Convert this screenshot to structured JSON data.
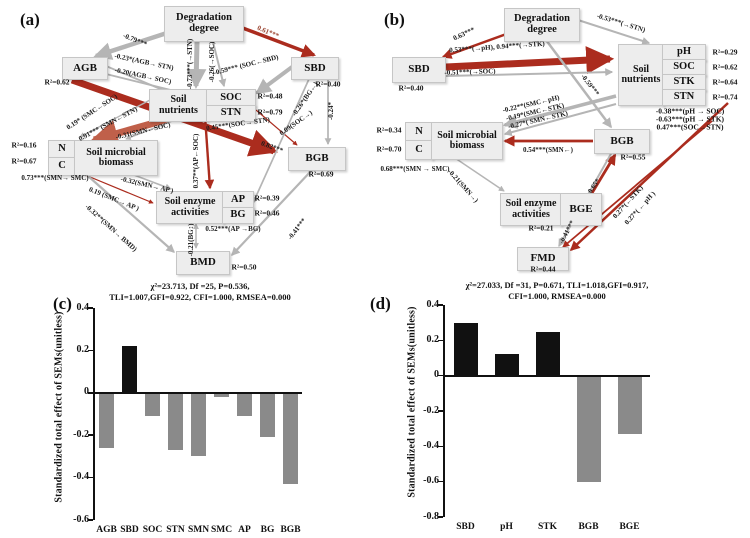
{
  "panel_a": {
    "tag": "(a)",
    "nodes": {
      "deg": "Degradation degree",
      "agb": "AGB",
      "sbd": "SBD",
      "soiln": "Soil nutrients",
      "soc": "SOC",
      "stn": "STN",
      "n": "N",
      "c": "C",
      "smb": "Soil microbial biomass",
      "sea": "Soil enzyme activities",
      "ap": "AP",
      "bg": "BG",
      "bgb": "BGB",
      "bmd": "BMD"
    },
    "edge_labels": {
      "e1": "-0.79***",
      "e2": "0.61***",
      "e3": "-0.23*(AGB→ STN)",
      "e4": "-0.20(AGB→ SOC)",
      "e5": "-0.73***(→STN)",
      "e6": "-0.26(→SOC)",
      "e7": "-0.59*** (SOC←SBD)",
      "e8": "0.45***(SOC→ STN)",
      "e9": "0.19* (SMC←SOC)",
      "e10": "0.91*** (SMN←STN)",
      "e11": "-0.31(SMN←SOC)",
      "e12": "0.73***(SMN→ SMC)",
      "e13": "-0.32(SMN→ AP )",
      "e14": "0.19 (SMC→ AP )",
      "e15": "-0.32**(SMN→ BMD)",
      "e16": "0.37**(AP←SOC)",
      "e17": "0.09(SOC→)",
      "e18": "-0.26*(BG←)",
      "e19": "-0.24*",
      "e20": "0.82***",
      "e21": "0.52***(AP →BG)",
      "e22": "-0.21(BG↕)",
      "e23": "-0.41***"
    },
    "annotations": {
      "r_agb": "R²=0.62",
      "r_sbd": "R²=0.40",
      "r_soc": "R²=0.48",
      "r_stn": "R²=0.79",
      "r_n": "R²=0.16",
      "r_c": "R²=0.67",
      "r_bgb": "R²=0.69",
      "r_ap": "R²=0.39",
      "r_bg": "R²=0.46",
      "r_bmd": "R²=0.50"
    },
    "stats": [
      "χ²=23.713, Df =25, P=0.536,",
      "TLI=1.007,GFI=0.922, CFI=1.000, RMSEA=0.000"
    ]
  },
  "panel_b": {
    "tag": "(b)",
    "nodes": {
      "deg": "Degradation degree",
      "sbd": "SBD",
      "soiln": "Soil nutrients",
      "ph": "pH",
      "soc": "SOC",
      "stk": "STK",
      "stn": "STN",
      "n": "N",
      "c": "C",
      "smb": "Soil microbial biomass",
      "bgb": "BGB",
      "sea": "Soil enzyme activities",
      "bge": "BGE",
      "fmd": "FMD"
    },
    "edge_labels": {
      "f1": "0.63***",
      "f2": "-0.53***(→STN)",
      "f3": "0.53***(→pH), 0.94***(→STK)",
      "f4": "-0.51***(→SOC)",
      "f5": "-0.59***",
      "f6": "-0.22**(SMC←pH)",
      "f7": "-0.19*(SMC←STK)",
      "f8": "-0.27*( SMN←STK)",
      "f9": "0.54***(SMN←)",
      "f10": "0.68***(SMN → SMC)",
      "f11": "-0.21(SMN→)",
      "f12": "0.65*",
      "f13": "-0.41***",
      "f14": "0.27*(←STK)",
      "f15": "0.27*( ← pH )"
    },
    "annotations": {
      "r_sbd": "R²=0.40",
      "r_ph": "R²=0.29",
      "r_soc": "R²=0.62",
      "r_stk": "R²=0.64",
      "r_stn": "R²=0.74",
      "p1": "-0.38***(pH → SOC)",
      "p2": "-0.63***(pH → STK)",
      "p3": "0.47***(SOC→STN)",
      "r_n": "R²=0.34",
      "r_c": "R²=0.70",
      "r_bgb": "R²=0.55",
      "r_bge": "R²=0.21",
      "r_fmd": "R²=0.44"
    },
    "stats": [
      "χ²=27.033, Df =31, P=0.671, TLI=1.018,GFI=0.917,",
      "CFI=1.000, RMSEA=0.000"
    ]
  },
  "chart_data": [
    {
      "panel": "(c)",
      "type": "bar",
      "categories": [
        "AGB",
        "SBD",
        "SOC",
        "STN",
        "SMN",
        "SMC",
        "AP",
        "BG",
        "BGB"
      ],
      "values": [
        -0.26,
        0.22,
        -0.11,
        -0.27,
        -0.3,
        -0.02,
        -0.11,
        -0.21,
        -0.43
      ],
      "bar_colors": [
        "gray",
        "black",
        "gray",
        "gray",
        "gray",
        "gray",
        "gray",
        "gray",
        "gray"
      ],
      "ylabel": "Standardized total effect of SEMs(unitless)",
      "ylim": [
        -0.6,
        0.4
      ],
      "yticks": [
        0.4,
        0.2,
        0,
        -0.2,
        -0.4,
        -0.6
      ],
      "grid": false,
      "legend": "none"
    },
    {
      "panel": "(d)",
      "type": "bar",
      "categories": [
        "SBD",
        "pH",
        "STK",
        "BGB",
        "BGE"
      ],
      "values": [
        0.3,
        0.12,
        0.25,
        -0.6,
        -0.33
      ],
      "bar_colors": [
        "black",
        "black",
        "black",
        "gray",
        "gray"
      ],
      "ylabel": "Standardized total effect of SEMs(unitless)",
      "ylim": [
        -0.8,
        0.4
      ],
      "yticks": [
        0.4,
        0.2,
        0,
        -0.2,
        -0.4,
        -0.6,
        -0.8
      ],
      "grid": false,
      "legend": "none"
    }
  ],
  "colors": {
    "arrow_gray": "#b5b5b5",
    "arrow_red": "#ab2c1e",
    "arrow_tan": "#c0604a",
    "bar_gray": "#8a8a8a",
    "bar_black": "#111111",
    "box_bg": "#ededed",
    "label_red": "#9c4531"
  }
}
